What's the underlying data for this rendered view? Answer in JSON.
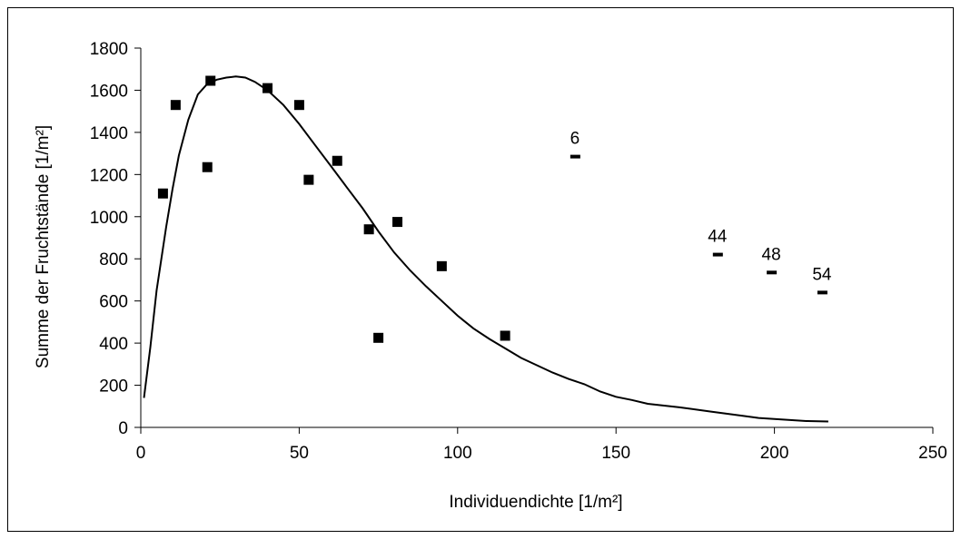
{
  "chart_data": {
    "type": "scatter",
    "xlabel": "Individuendichte [1/m²]",
    "ylabel": "Summe der Fruchtstände [1/m²]",
    "xlim": [
      0,
      250
    ],
    "ylim": [
      0,
      1800
    ],
    "xticks": [
      0,
      50,
      100,
      150,
      200,
      250
    ],
    "yticks": [
      0,
      200,
      400,
      600,
      800,
      1000,
      1200,
      1400,
      1600,
      1800
    ],
    "grid": false,
    "legend": "none",
    "series": [
      {
        "kind": "points",
        "marker": "square",
        "points": [
          [
            7,
            1110
          ],
          [
            11,
            1530
          ],
          [
            21,
            1235
          ],
          [
            22,
            1645
          ],
          [
            40,
            1610
          ],
          [
            50,
            1530
          ],
          [
            53,
            1175
          ],
          [
            62,
            1265
          ],
          [
            72,
            940
          ],
          [
            75,
            425
          ],
          [
            81,
            975
          ],
          [
            95,
            765
          ],
          [
            115,
            435
          ]
        ]
      },
      {
        "kind": "fitted-curve",
        "points": [
          [
            1,
            140
          ],
          [
            3,
            380
          ],
          [
            5,
            650
          ],
          [
            8,
            950
          ],
          [
            10,
            1130
          ],
          [
            12,
            1290
          ],
          [
            15,
            1460
          ],
          [
            18,
            1580
          ],
          [
            21,
            1630
          ],
          [
            24,
            1650
          ],
          [
            27,
            1660
          ],
          [
            30,
            1665
          ],
          [
            33,
            1660
          ],
          [
            36,
            1640
          ],
          [
            40,
            1600
          ],
          [
            45,
            1530
          ],
          [
            50,
            1440
          ],
          [
            55,
            1340
          ],
          [
            60,
            1240
          ],
          [
            65,
            1140
          ],
          [
            70,
            1040
          ],
          [
            75,
            930
          ],
          [
            80,
            830
          ],
          [
            85,
            745
          ],
          [
            90,
            670
          ],
          [
            95,
            600
          ],
          [
            100,
            530
          ],
          [
            105,
            470
          ],
          [
            110,
            420
          ],
          [
            115,
            375
          ],
          [
            120,
            330
          ],
          [
            125,
            295
          ],
          [
            130,
            260
          ],
          [
            135,
            230
          ],
          [
            140,
            205
          ],
          [
            145,
            170
          ],
          [
            150,
            145
          ],
          [
            155,
            130
          ],
          [
            160,
            112
          ],
          [
            170,
            95
          ],
          [
            180,
            75
          ],
          [
            190,
            55
          ],
          [
            195,
            45
          ],
          [
            200,
            40
          ],
          [
            210,
            30
          ],
          [
            217,
            28
          ]
        ]
      },
      {
        "kind": "labeled-dash",
        "points": [
          {
            "x": 137,
            "y": 1285,
            "label": "6"
          },
          {
            "x": 182,
            "y": 820,
            "label": "44"
          },
          {
            "x": 199,
            "y": 735,
            "label": "48"
          },
          {
            "x": 215,
            "y": 640,
            "label": "54"
          }
        ]
      }
    ]
  }
}
